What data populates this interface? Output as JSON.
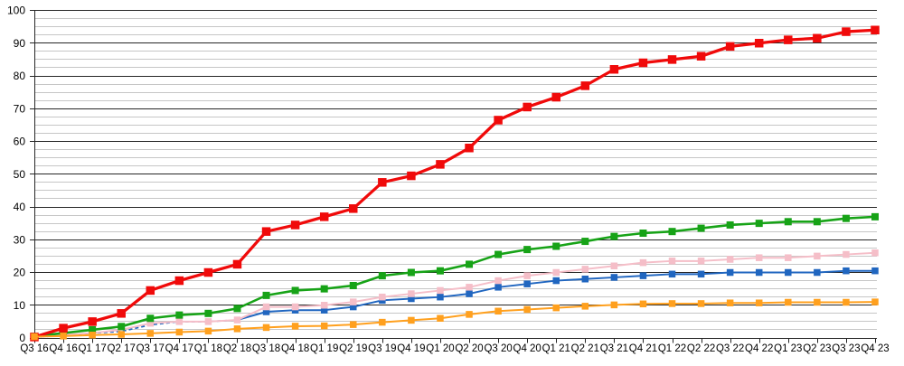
{
  "chart_data": {
    "type": "line",
    "title": "",
    "legend_position": "none",
    "background": "#ffffff",
    "x_labels": [
      "Q3 16",
      "Q4 16",
      "Q1 17",
      "Q2 17",
      "Q3 17",
      "Q4 17",
      "Q1 18",
      "Q2 18",
      "Q3 18",
      "Q4 18",
      "Q1 19",
      "Q2 19",
      "Q3 19",
      "Q4 19",
      "Q1 20",
      "Q2 20",
      "Q3 20",
      "Q4 20",
      "Q1 21",
      "Q2 21",
      "Q3 21",
      "Q4 21",
      "Q1 22",
      "Q2 22",
      "Q3 22",
      "Q4 22",
      "Q1 23",
      "Q2 23",
      "Q3 23",
      "Q4 23"
    ],
    "y_axis": {
      "min": 0,
      "max": 100,
      "major_step": 10,
      "minor_step": 2.5,
      "tick_labels": [
        "0",
        "10",
        "20",
        "30",
        "40",
        "50",
        "60",
        "70",
        "80",
        "90",
        "100"
      ]
    },
    "grid": {
      "major_color": "#262626",
      "minor_color": "#c6c6c6",
      "axis_color": "#262626"
    },
    "series": [
      {
        "name": "blue",
        "color": "#2066c0",
        "line_width": 2,
        "dashed_line_width": 1.7,
        "marker": "square",
        "marker_size": 7.5,
        "marker_from_index": 8,
        "dashed_until_index": 7,
        "values": [
          0.2,
          0.8,
          1.5,
          2,
          4,
          5,
          5,
          5.5,
          8,
          8.5,
          8.5,
          9.5,
          11.5,
          12,
          12.5,
          13.5,
          15.5,
          16.5,
          17.5,
          18,
          18.5,
          19,
          19.5,
          19.5,
          20,
          20,
          20,
          20,
          20.5,
          20.5
        ]
      },
      {
        "name": "pink",
        "color": "#f5bec8",
        "line_width": 2,
        "marker": "square",
        "marker_size": 7.5,
        "marker_from_index": 4,
        "values": [
          0.2,
          1,
          1.5,
          2.5,
          4.5,
          5,
          5,
          5.5,
          9.5,
          9.5,
          10,
          11,
          12.5,
          13.5,
          14.5,
          15.5,
          17.5,
          19,
          20,
          21,
          22,
          23,
          23.5,
          23.5,
          24,
          24.5,
          24.5,
          25,
          25.5,
          26
        ]
      },
      {
        "name": "green",
        "color": "#17a317",
        "line_width": 2.6,
        "marker": "square",
        "marker_size": 8,
        "values": [
          0.5,
          1.5,
          2.5,
          3.5,
          6,
          7,
          7.5,
          9,
          13,
          14.5,
          15,
          16,
          19,
          20,
          20.5,
          22.5,
          25.5,
          27,
          28,
          29.5,
          31,
          32,
          32.5,
          33.5,
          34.5,
          35,
          35.5,
          35.5,
          36.5,
          37
        ]
      },
      {
        "name": "red",
        "color": "#f00a0a",
        "line_width": 3.3,
        "marker": "square",
        "marker_size": 9.5,
        "values": [
          0.3,
          3,
          5,
          7.5,
          14.5,
          17.5,
          20,
          22.5,
          32.5,
          34.5,
          37,
          39.5,
          47.5,
          49.5,
          53,
          58,
          66.5,
          70.5,
          73.5,
          77,
          82,
          84,
          85,
          86,
          89,
          90,
          91,
          91.5,
          93.5,
          94
        ]
      },
      {
        "name": "orange",
        "color": "#ffa01e",
        "line_width": 2,
        "marker": "square",
        "marker_size": 7.5,
        "values": [
          0.4,
          0.6,
          0.9,
          1.1,
          1.4,
          1.8,
          2.1,
          2.8,
          3.2,
          3.6,
          3.7,
          4.1,
          4.8,
          5.4,
          6,
          7.2,
          8.2,
          8.7,
          9.2,
          9.7,
          10.1,
          10.4,
          10.5,
          10.5,
          10.7,
          10.7,
          10.9,
          10.9,
          10.9,
          11
        ]
      }
    ]
  }
}
